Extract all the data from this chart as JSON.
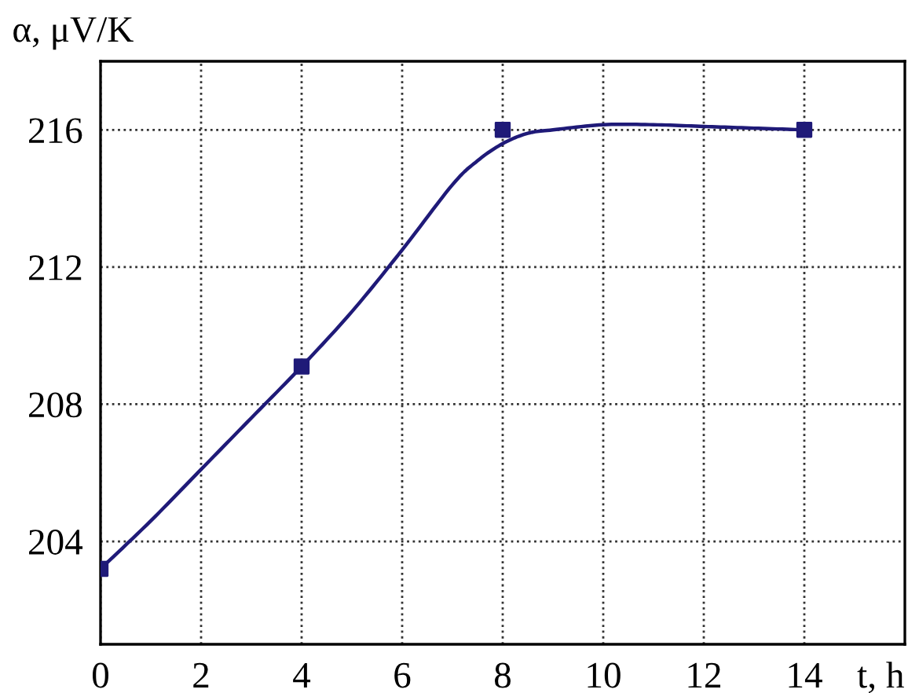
{
  "chart_data": {
    "type": "line",
    "xlabel": "t, h",
    "ylabel": "α, μV/K",
    "xlim": [
      0,
      16
    ],
    "xticks": [
      0,
      2,
      4,
      6,
      8,
      10,
      12,
      14
    ],
    "ylim": [
      201,
      218
    ],
    "yticks": [
      204,
      208,
      212,
      216
    ],
    "grid": true,
    "series": [
      {
        "color": "#1f1a78",
        "marker": "none",
        "x": [
          0,
          1,
          2,
          3,
          4,
          5,
          6,
          7,
          7.5,
          8,
          8.5,
          9,
          10,
          11,
          12,
          13,
          14
        ],
        "values": [
          203.2,
          204.6,
          206.1,
          207.6,
          209.1,
          210.7,
          212.5,
          214.4,
          215.1,
          215.6,
          215.9,
          216.0,
          216.15,
          216.15,
          216.1,
          216.05,
          216.0
        ]
      },
      {
        "type": "scatter",
        "color": "#1f1a78",
        "marker": "square",
        "x": [
          0,
          4,
          8,
          14
        ],
        "values": [
          203.2,
          209.1,
          216.0,
          216.0
        ]
      }
    ]
  }
}
